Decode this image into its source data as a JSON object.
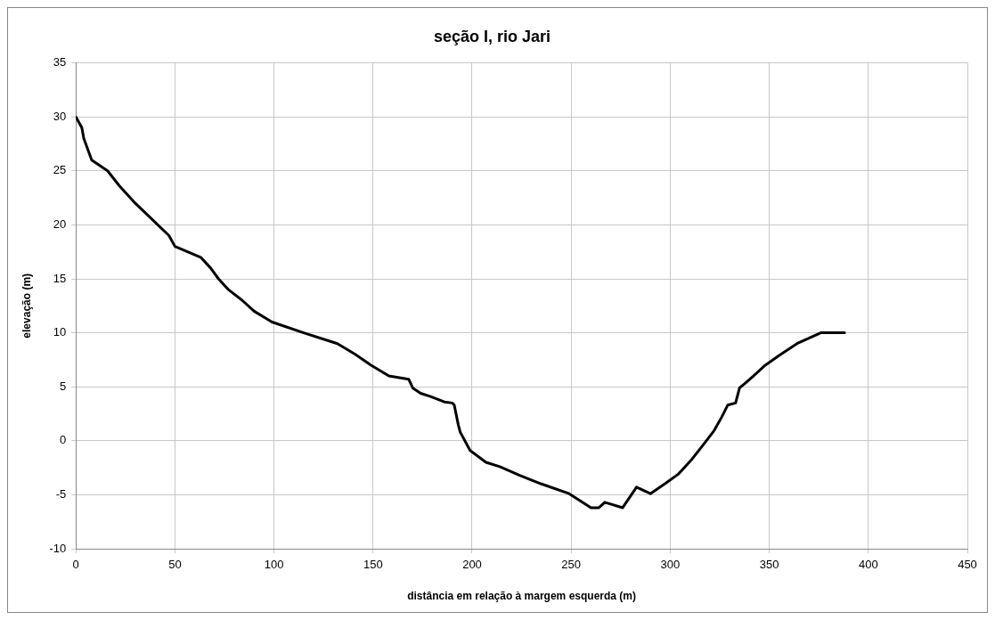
{
  "chart_data": {
    "type": "line",
    "title": "seção I, rio Jari",
    "xlabel": "distância em relação à margem esquerda (m)",
    "ylabel": "elevação (m)",
    "xlim": [
      0,
      450
    ],
    "xticks": [
      0,
      50,
      100,
      150,
      200,
      250,
      300,
      350,
      400,
      450
    ],
    "ylim": [
      -10,
      35
    ],
    "yticks": [
      -10,
      -5,
      0,
      5,
      10,
      15,
      20,
      25,
      30,
      35
    ],
    "grid": true,
    "legend": false,
    "marker": "none",
    "line_style": "solid",
    "series": [
      {
        "color": "#000000",
        "x": [
          0,
          3,
          4,
          8,
          16,
          22,
          30,
          47,
          50,
          63,
          68,
          72,
          77,
          84,
          90,
          99,
          115,
          132,
          141,
          149,
          158,
          168,
          170,
          174,
          179,
          186,
          190,
          191,
          193,
          194,
          199,
          207,
          214,
          224,
          235,
          249,
          260,
          264,
          267,
          276,
          283,
          290,
          298,
          304,
          311,
          317,
          322,
          326,
          329,
          333,
          335,
          337,
          342,
          348,
          355,
          364,
          376,
          388
        ],
        "values": [
          30,
          29,
          28,
          26,
          25,
          23.6,
          22,
          19,
          18,
          17,
          16,
          15,
          14,
          13,
          12,
          11,
          10,
          9,
          8,
          7,
          6,
          5.7,
          4.9,
          4.4,
          4.1,
          3.6,
          3.5,
          3.3,
          1.5,
          0.8,
          -0.9,
          -2,
          -2.4,
          -3.2,
          -4,
          -4.9,
          -6.2,
          -6.2,
          -5.7,
          -6.2,
          -4.3,
          -4.9,
          -3.9,
          -3.1,
          -1.7,
          -0.3,
          0.9,
          2.2,
          3.3,
          3.5,
          4.9,
          5.2,
          6,
          7,
          7.9,
          9,
          10,
          10
        ]
      }
    ]
  }
}
